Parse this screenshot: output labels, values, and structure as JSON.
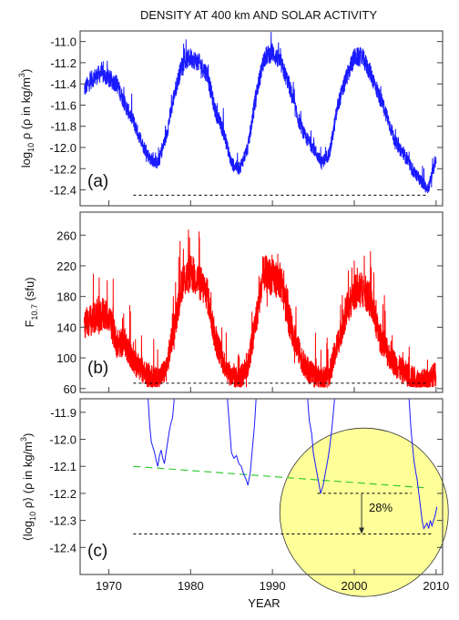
{
  "title": "DENSITY AT 400 km AND SOLAR ACTIVITY",
  "xlabel": "YEAR",
  "colors": {
    "density": "#1a1aff",
    "f107": "#ff0000",
    "trend": "#33cc33",
    "highlight": "#ffff99"
  },
  "chart_data": [
    {
      "panel": "(a)",
      "type": "line",
      "title": "DENSITY AT 400 km AND SOLAR ACTIVITY",
      "ylabel_main": "log",
      "ylabel_sub": "10",
      "ylabel_rest": " ρ (ρ in kg/m",
      "ylabel_sup": "3",
      "ylabel_end": ")",
      "xlim": [
        1966.5,
        2010.8
      ],
      "ylim": [
        -12.55,
        -10.9
      ],
      "yticks": [
        -11.0,
        -11.2,
        -11.4,
        -11.6,
        -11.8,
        -12.0,
        -12.2,
        -12.4
      ],
      "ytick_labels": [
        "-11.0",
        "-11.2",
        "-11.4",
        "-11.6",
        "-11.8",
        "-12.0",
        "-12.2",
        "-12.4"
      ],
      "reference_line": {
        "y": -12.45,
        "x": [
          1973,
          2009
        ]
      },
      "x": [
        1967,
        1968,
        1969,
        1970,
        1971,
        1972,
        1973,
        1974,
        1975,
        1976,
        1977,
        1978,
        1979,
        1980,
        1981,
        1982,
        1983,
        1984,
        1985,
        1986,
        1987,
        1988,
        1989,
        1990,
        1991,
        1992,
        1993,
        1994,
        1995,
        1996,
        1997,
        1998,
        1999,
        2000,
        2001,
        2002,
        2003,
        2004,
        2005,
        2006,
        2007,
        2008,
        2009,
        2010
      ],
      "values": [
        -11.45,
        -11.35,
        -11.3,
        -11.35,
        -11.4,
        -11.6,
        -11.75,
        -11.95,
        -12.1,
        -12.15,
        -11.9,
        -11.5,
        -11.2,
        -11.15,
        -11.2,
        -11.3,
        -11.65,
        -11.85,
        -12.15,
        -12.2,
        -12.0,
        -11.5,
        -11.15,
        -11.1,
        -11.2,
        -11.4,
        -11.7,
        -11.9,
        -12.0,
        -12.15,
        -12.05,
        -11.6,
        -11.35,
        -11.15,
        -11.15,
        -11.3,
        -11.5,
        -11.7,
        -11.95,
        -12.05,
        -12.2,
        -12.3,
        -12.4,
        -12.1
      ],
      "noise": 0.1
    },
    {
      "panel": "(b)",
      "type": "line",
      "ylabel_main": "F",
      "ylabel_sub": "10.7",
      "ylabel_rest": " (sfu)",
      "ylabel_sup": "",
      "ylabel_end": "",
      "xlim": [
        1966.5,
        2010.8
      ],
      "ylim": [
        55,
        290
      ],
      "yticks": [
        60,
        100,
        140,
        180,
        220,
        260
      ],
      "ytick_labels": [
        "60",
        "100",
        "140",
        "180",
        "220",
        "260"
      ],
      "reference_line": {
        "y": 67,
        "x": [
          1973,
          2009
        ]
      },
      "x": [
        1967,
        1968,
        1969,
        1970,
        1971,
        1972,
        1973,
        1974,
        1975,
        1976,
        1977,
        1978,
        1979,
        1980,
        1981,
        1982,
        1983,
        1984,
        1985,
        1986,
        1987,
        1988,
        1989,
        1990,
        1991,
        1992,
        1993,
        1994,
        1995,
        1996,
        1997,
        1998,
        1999,
        2000,
        2001,
        2002,
        2003,
        2004,
        2005,
        2006,
        2007,
        2008,
        2009,
        2010
      ],
      "values": [
        145,
        150,
        155,
        155,
        118,
        120,
        95,
        85,
        75,
        72,
        85,
        140,
        200,
        210,
        200,
        185,
        125,
        95,
        75,
        72,
        90,
        150,
        210,
        205,
        200,
        150,
        115,
        88,
        77,
        72,
        80,
        120,
        160,
        185,
        190,
        175,
        130,
        108,
        92,
        82,
        75,
        70,
        70,
        80
      ],
      "noise": 30
    },
    {
      "panel": "(c)",
      "type": "line",
      "ylabel_main": "⟨log",
      "ylabel_sub": "10",
      "ylabel_rest": " ρ⟩ (ρ in kg/m",
      "ylabel_sup": "3",
      "ylabel_end": ")",
      "xlim": [
        1966.5,
        2010.8
      ],
      "ylim": [
        -12.5,
        -11.85
      ],
      "yticks": [
        -11.9,
        -12.0,
        -12.1,
        -12.2,
        -12.3,
        -12.4
      ],
      "ytick_labels": [
        "-11.9",
        "-12.0",
        "-12.1",
        "-12.2",
        "-12.3",
        "-12.4"
      ],
      "xticks": [
        1970,
        1980,
        1990,
        2000,
        2010
      ],
      "xtick_labels": [
        "1970",
        "1980",
        "1990",
        "2000",
        "2010"
      ],
      "segments": [
        {
          "x": [
            1974.8,
            1975.0,
            1975.2,
            1975.4,
            1975.6,
            1975.8,
            1976.0,
            1976.2,
            1976.4,
            1976.6,
            1976.8,
            1977.0,
            1977.2,
            1977.4,
            1977.6,
            1977.8,
            1978.0
          ],
          "y": [
            -11.85,
            -11.95,
            -12.01,
            -12.03,
            -12.05,
            -12.08,
            -12.1,
            -12.06,
            -12.04,
            -12.07,
            -12.09,
            -12.05,
            -12.01,
            -11.97,
            -11.94,
            -11.92,
            -11.85
          ]
        },
        {
          "x": [
            1984.5,
            1984.8,
            1985.0,
            1985.3,
            1985.6,
            1985.9,
            1986.2,
            1986.5,
            1986.8,
            1987.0,
            1987.3,
            1987.5,
            1987.8,
            1988.0
          ],
          "y": [
            -11.85,
            -11.97,
            -12.05,
            -12.07,
            -12.06,
            -12.09,
            -12.1,
            -12.13,
            -12.15,
            -12.17,
            -12.12,
            -12.05,
            -11.95,
            -11.85
          ]
        },
        {
          "x": [
            1994.3,
            1994.5,
            1994.8,
            1995.0,
            1995.3,
            1995.6,
            1995.9,
            1996.2,
            1996.5,
            1996.8,
            1997.0,
            1997.3,
            1997.6
          ],
          "y": [
            -11.85,
            -11.93,
            -11.98,
            -12.05,
            -12.1,
            -12.15,
            -12.2,
            -12.17,
            -12.12,
            -12.07,
            -12.03,
            -11.95,
            -11.85
          ]
        },
        {
          "x": [
            2006.7,
            2006.9,
            2007.1,
            2007.3,
            2007.5,
            2007.7,
            2007.9,
            2008.1,
            2008.3,
            2008.5,
            2008.7,
            2008.9,
            2009.1,
            2009.3,
            2009.5,
            2009.7,
            2009.9,
            2010.1
          ],
          "y": [
            -11.85,
            -11.95,
            -12.02,
            -12.08,
            -12.12,
            -12.15,
            -12.2,
            -12.25,
            -12.3,
            -12.33,
            -12.32,
            -12.31,
            -12.33,
            -12.3,
            -12.32,
            -12.3,
            -12.28,
            -12.25
          ]
        }
      ],
      "trend": {
        "x": [
          1973,
          2009
        ],
        "y": [
          -12.1,
          -12.18
        ]
      },
      "reference_lines": [
        {
          "y": -12.2,
          "x": [
            1995.5,
            2007
          ]
        },
        {
          "y": -12.35,
          "x": [
            1973,
            2009.5
          ]
        }
      ],
      "highlight_circle": {
        "cx": 2001.2,
        "cy": -12.27,
        "r_years": 10.3
      },
      "arrow": {
        "x": 2000.9,
        "from": -12.2,
        "to": -12.35
      },
      "annotation": "28%"
    }
  ]
}
